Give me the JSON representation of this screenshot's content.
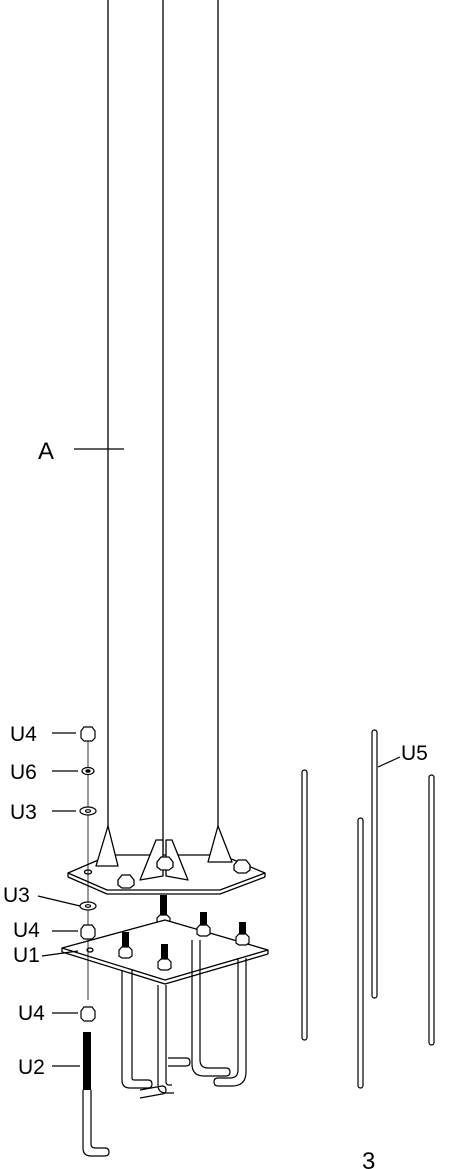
{
  "labels": {
    "pole": "A",
    "nut_top": "U4",
    "spacer": "U6",
    "washer_top": "U3",
    "washer_mid": "U3",
    "nut_mid": "U4",
    "anchor_plate": "U1",
    "nut_bottom": "U4",
    "anchor_bolt": "U2",
    "rods": "U5"
  },
  "page_number": "3",
  "colors": {
    "line": "#000000",
    "fill": "#ffffff",
    "bolt": "#000000"
  }
}
